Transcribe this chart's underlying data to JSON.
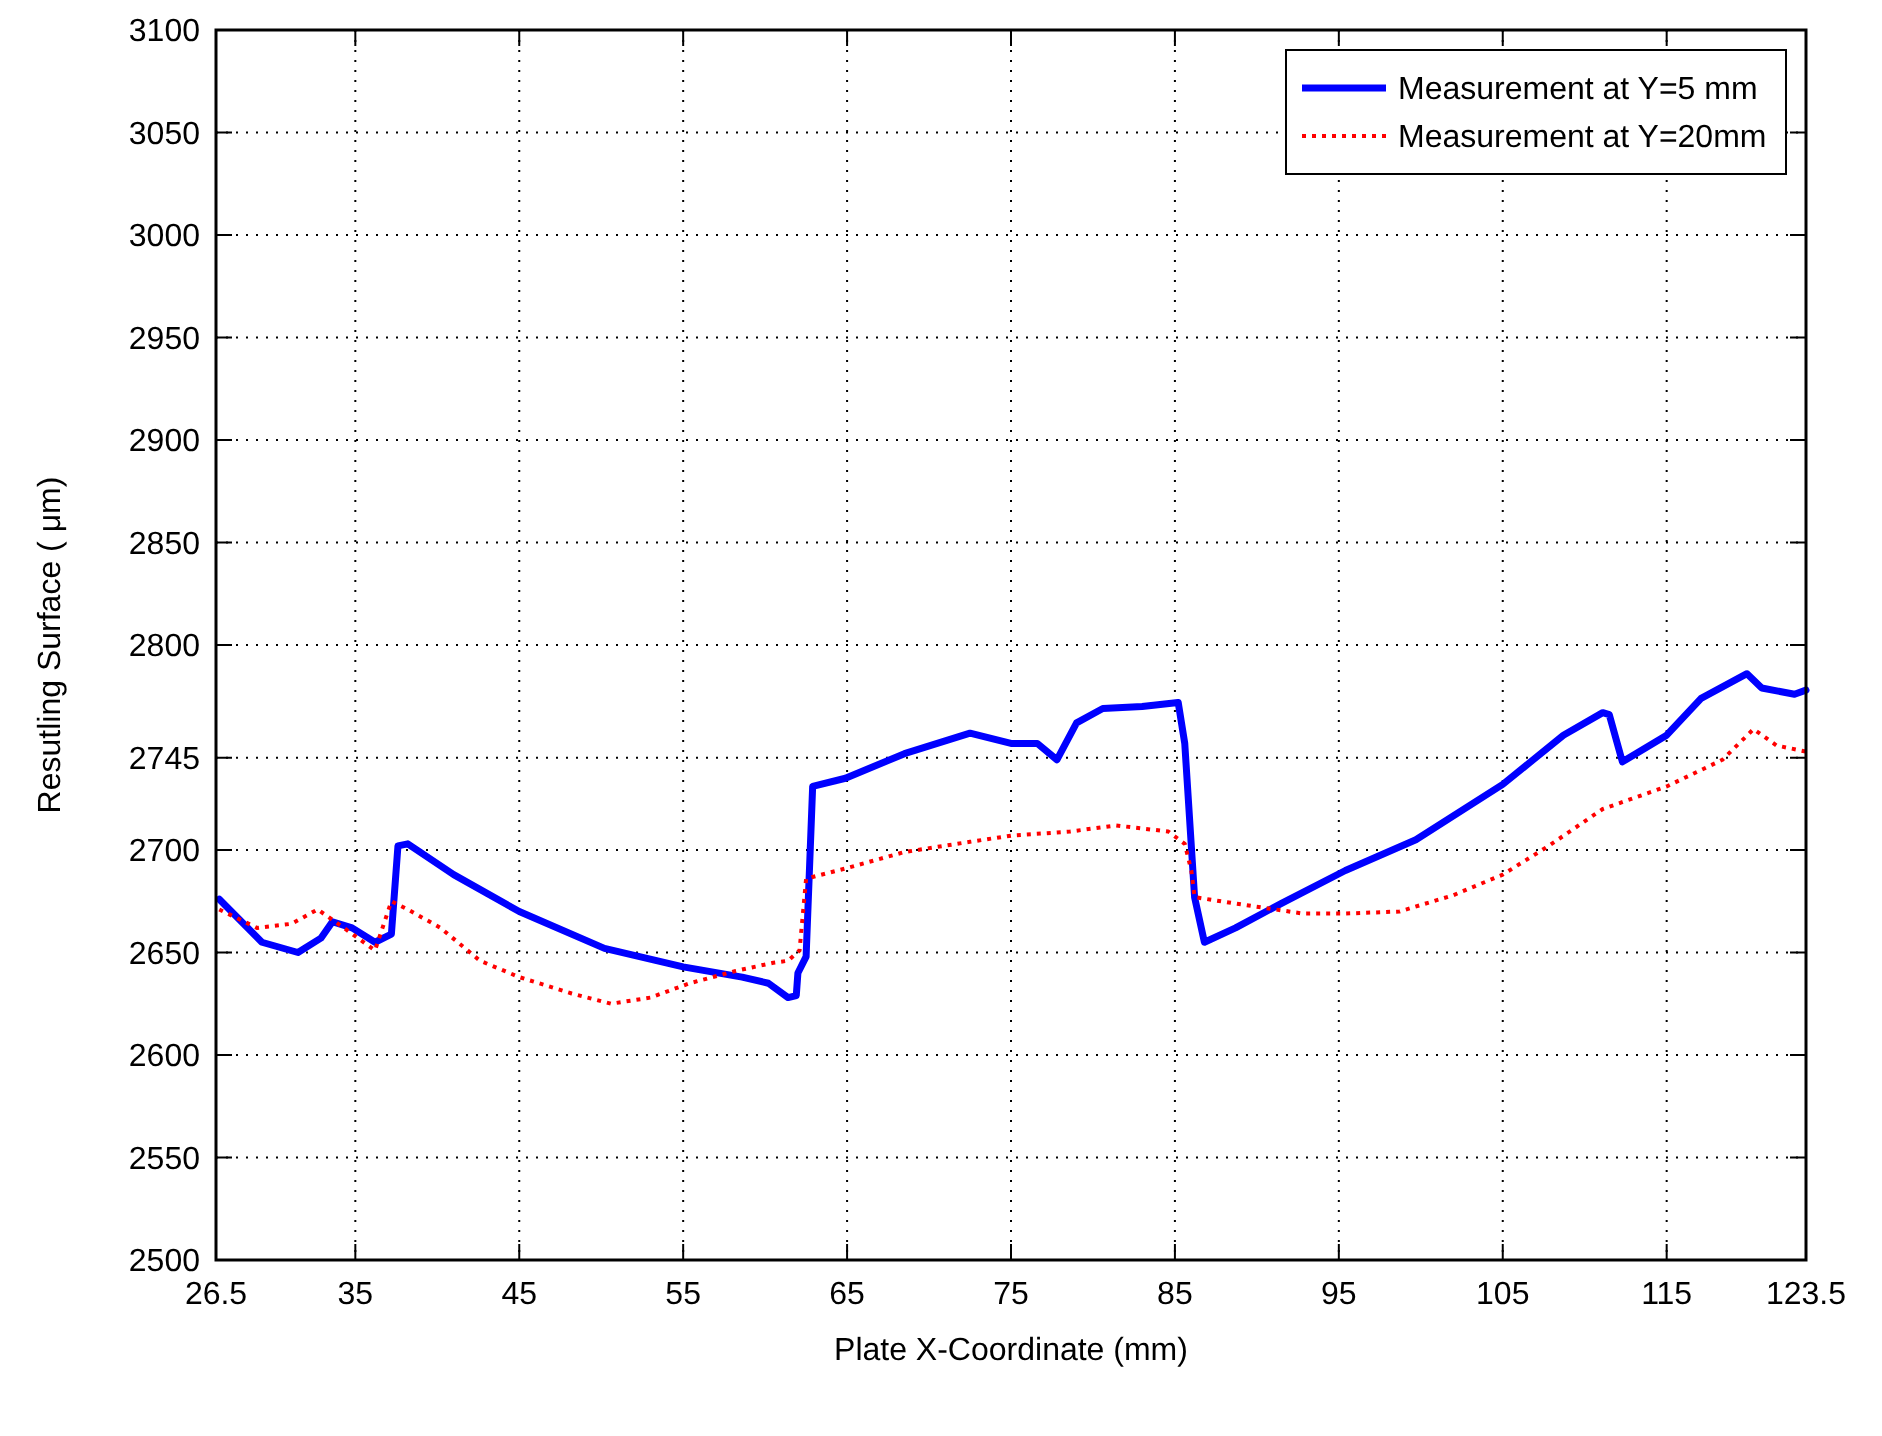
{
  "chart_data": {
    "type": "line",
    "xlabel": "Plate X-Coordinate (mm)",
    "ylabel": "Resutling Surface ( μm)",
    "xlim": [
      26.5,
      123.5
    ],
    "xticks": [
      26.5,
      35,
      45,
      55,
      65,
      75,
      85,
      95,
      105,
      115,
      123.5
    ],
    "ylim": [
      2500,
      3100
    ],
    "yticks": [
      2500,
      2550,
      2600,
      2650,
      2700,
      2745,
      2800,
      2850,
      2900,
      2950,
      3000,
      3050,
      3100
    ],
    "grid": true,
    "legend": "top right",
    "series": [
      {
        "name": "Measurement at Y=5 mm",
        "color": "#0000ff",
        "line_style": "solid",
        "x": [
          26.7,
          29.3,
          31.5,
          32.9,
          33.6,
          34.8,
          36.2,
          37.2,
          37.6,
          38.2,
          41.0,
          45,
          50.2,
          55,
          58.6,
          60.2,
          61.4,
          61.9,
          62.0,
          62.5,
          62.9,
          64.9,
          68.5,
          72.5,
          75,
          76.6,
          77.8,
          79,
          80.6,
          83,
          85.2,
          85.6,
          86.2,
          86.8,
          88.7,
          91.5,
          95.4,
          99.7,
          105,
          108.7,
          111.1,
          111.5,
          112.3,
          115,
          117.1,
          119.9,
          120.8,
          122.8,
          123.5
        ],
        "values": [
          2676,
          2655,
          2650,
          2657,
          2665,
          2662,
          2655,
          2659,
          2702,
          2703,
          2688,
          2670,
          2652,
          2643,
          2638,
          2635,
          2628,
          2629,
          2640,
          2648,
          2731,
          2735,
          2747,
          2757,
          2752,
          2752,
          2744,
          2762,
          2769,
          2770,
          2772,
          2752,
          2677,
          2655,
          2662,
          2674,
          2690,
          2705,
          2732,
          2756,
          2767,
          2766,
          2743,
          2756,
          2774,
          2786,
          2779,
          2776,
          2778
        ]
      },
      {
        "name": "Measurement at Y=20mm",
        "color": "#ff0000",
        "line_style": "dotted",
        "x": [
          26.7,
          29,
          31.1,
          32.7,
          34.3,
          36.2,
          37.2,
          38.2,
          40.2,
          42.6,
          45,
          48.2,
          50.6,
          53,
          55.4,
          58.2,
          60.5,
          61.4,
          62.1,
          62.5,
          64.9,
          68.5,
          72.5,
          75,
          78.6,
          81.4,
          84.6,
          85.6,
          86.0,
          86.2,
          88.6,
          92.8,
          95.4,
          98.7,
          102,
          105,
          107.8,
          111.1,
          115,
          118.4,
          120.3,
          121.7,
          123.5
        ],
        "values": [
          2671,
          2662,
          2664,
          2671,
          2662,
          2651,
          2675,
          2671,
          2662,
          2646,
          2638,
          2630,
          2625,
          2628,
          2635,
          2641,
          2645,
          2646,
          2651,
          2686,
          2691,
          2699,
          2704,
          2707,
          2709,
          2712,
          2709,
          2703,
          2690,
          2677,
          2674,
          2669,
          2669,
          2670,
          2678,
          2688,
          2702,
          2720,
          2731,
          2744,
          2759,
          2751,
          2748
        ]
      }
    ]
  }
}
